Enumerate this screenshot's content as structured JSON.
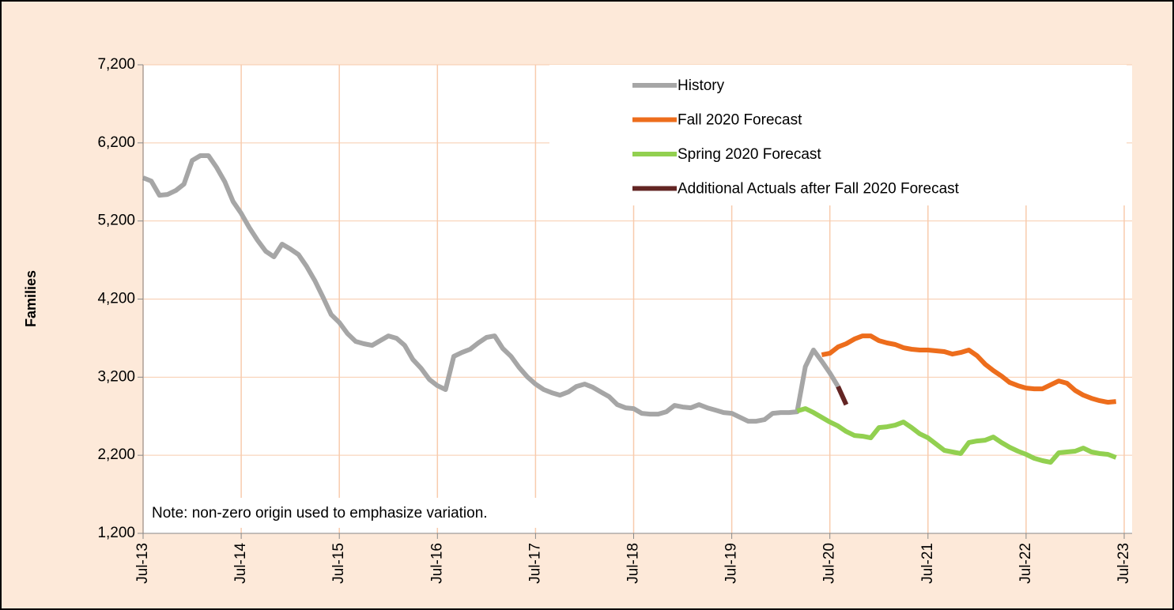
{
  "chart_data": {
    "type": "line",
    "y_label": "Families",
    "annotation": "Note: non-zero origin used to emphasize variation.",
    "categories": [
      "Jul-13",
      null,
      null,
      null,
      null,
      null,
      null,
      null,
      null,
      null,
      null,
      null,
      "Jul-14",
      null,
      null,
      null,
      null,
      null,
      null,
      null,
      null,
      null,
      null,
      null,
      "Jul-15",
      null,
      null,
      null,
      null,
      null,
      null,
      null,
      null,
      null,
      null,
      null,
      "Jul-16",
      null,
      null,
      null,
      null,
      null,
      null,
      null,
      null,
      null,
      null,
      null,
      "Jul-17",
      null,
      null,
      null,
      null,
      null,
      null,
      null,
      null,
      null,
      null,
      null,
      "Jul-18",
      null,
      null,
      null,
      null,
      null,
      null,
      null,
      null,
      null,
      null,
      null,
      "Jul-19",
      null,
      null,
      null,
      null,
      null,
      null,
      null,
      null,
      null,
      null,
      null,
      "Jul-20",
      null,
      null,
      null,
      null,
      null,
      null,
      null,
      null,
      null,
      null,
      null,
      "Jul-21",
      null,
      null,
      null,
      null,
      null,
      null,
      null,
      null,
      null,
      null,
      null,
      "Jul-22",
      null,
      null,
      null,
      null,
      null,
      null,
      null,
      null,
      null,
      null,
      null,
      "Jul-23"
    ],
    "series": [
      {
        "name": "History",
        "color": "#a6a6a6",
        "values": [
          5753,
          5712,
          5530,
          5540,
          5590,
          5672,
          5975,
          6036,
          6036,
          5884,
          5702,
          5450,
          5297,
          5115,
          4953,
          4812,
          4741,
          4903,
          4842,
          4771,
          4619,
          4437,
          4225,
          4002,
          3901,
          3759,
          3658,
          3628,
          3607,
          3668,
          3729,
          3698,
          3607,
          3425,
          3314,
          3172,
          3091,
          3041,
          3466,
          3516,
          3557,
          3638,
          3709,
          3729,
          3567,
          3466,
          3324,
          3203,
          3111,
          3041,
          3000,
          2970,
          3010,
          3081,
          3111,
          3071,
          3010,
          2950,
          2848,
          2808,
          2798,
          2737,
          2727,
          2727,
          2757,
          2838,
          2818,
          2808,
          2848,
          2808,
          2778,
          2747,
          2737,
          2686,
          2636,
          2636,
          2656,
          2737,
          2747,
          2747,
          2757,
          3334,
          3547,
          3405,
          3253,
          3081,
          null,
          null,
          null,
          null,
          null,
          null,
          null,
          null,
          null,
          null,
          null,
          null,
          null,
          null,
          null,
          null,
          null,
          null,
          null,
          null,
          null,
          null,
          null,
          null,
          null,
          null,
          null,
          null,
          null,
          null,
          null,
          null,
          null,
          null,
          null
        ]
      },
      {
        "name": "Fall 2020 Forecast",
        "color": "#ed6d1c",
        "values": [
          null,
          null,
          null,
          null,
          null,
          null,
          null,
          null,
          null,
          null,
          null,
          null,
          null,
          null,
          null,
          null,
          null,
          null,
          null,
          null,
          null,
          null,
          null,
          null,
          null,
          null,
          null,
          null,
          null,
          null,
          null,
          null,
          null,
          null,
          null,
          null,
          null,
          null,
          null,
          null,
          null,
          null,
          null,
          null,
          null,
          null,
          null,
          null,
          null,
          null,
          null,
          null,
          null,
          null,
          null,
          null,
          null,
          null,
          null,
          null,
          null,
          null,
          null,
          null,
          null,
          null,
          null,
          null,
          null,
          null,
          null,
          null,
          null,
          null,
          null,
          null,
          null,
          null,
          null,
          null,
          null,
          null,
          null,
          3486,
          3506,
          3587,
          3628,
          3688,
          3729,
          3729,
          3668,
          3638,
          3618,
          3577,
          3557,
          3547,
          3547,
          3537,
          3527,
          3496,
          3516,
          3547,
          3476,
          3365,
          3284,
          3213,
          3132,
          3091,
          3061,
          3051,
          3051,
          3101,
          3152,
          3122,
          3030,
          2970,
          2929,
          2899,
          2879,
          2889,
          null
        ]
      },
      {
        "name": "Spring 2020 Forecast",
        "color": "#92d050",
        "values": [
          null,
          null,
          null,
          null,
          null,
          null,
          null,
          null,
          null,
          null,
          null,
          null,
          null,
          null,
          null,
          null,
          null,
          null,
          null,
          null,
          null,
          null,
          null,
          null,
          null,
          null,
          null,
          null,
          null,
          null,
          null,
          null,
          null,
          null,
          null,
          null,
          null,
          null,
          null,
          null,
          null,
          null,
          null,
          null,
          null,
          null,
          null,
          null,
          null,
          null,
          null,
          null,
          null,
          null,
          null,
          null,
          null,
          null,
          null,
          null,
          null,
          null,
          null,
          null,
          null,
          null,
          null,
          null,
          null,
          null,
          null,
          null,
          null,
          null,
          null,
          null,
          null,
          null,
          null,
          null,
          2767,
          2798,
          2747,
          2686,
          2626,
          2575,
          2504,
          2454,
          2444,
          2423,
          2555,
          2565,
          2585,
          2626,
          2555,
          2474,
          2423,
          2343,
          2262,
          2242,
          2222,
          2363,
          2383,
          2393,
          2433,
          2363,
          2302,
          2252,
          2212,
          2161,
          2131,
          2110,
          2232,
          2242,
          2252,
          2292,
          2242,
          2222,
          2212,
          2171,
          null
        ]
      },
      {
        "name": "Additional Actuals after Fall 2020 Forecast",
        "color": "#632523",
        "values": [
          null,
          null,
          null,
          null,
          null,
          null,
          null,
          null,
          null,
          null,
          null,
          null,
          null,
          null,
          null,
          null,
          null,
          null,
          null,
          null,
          null,
          null,
          null,
          null,
          null,
          null,
          null,
          null,
          null,
          null,
          null,
          null,
          null,
          null,
          null,
          null,
          null,
          null,
          null,
          null,
          null,
          null,
          null,
          null,
          null,
          null,
          null,
          null,
          null,
          null,
          null,
          null,
          null,
          null,
          null,
          null,
          null,
          null,
          null,
          null,
          null,
          null,
          null,
          null,
          null,
          null,
          null,
          null,
          null,
          null,
          null,
          null,
          null,
          null,
          null,
          null,
          null,
          null,
          null,
          null,
          null,
          null,
          null,
          null,
          null,
          3081,
          2848,
          null,
          null,
          null,
          null,
          null,
          null,
          null,
          null,
          null,
          null,
          null,
          null,
          null,
          null,
          null,
          null,
          null,
          null,
          null,
          null,
          null,
          null,
          null,
          null,
          null,
          null,
          null,
          null,
          null,
          null,
          null,
          null,
          null,
          null
        ]
      }
    ],
    "ylim": [
      1200,
      7200
    ],
    "yticks": [
      {
        "value": 1200,
        "label": "1,200"
      },
      {
        "value": 2200,
        "label": "2,200"
      },
      {
        "value": 3200,
        "label": "3,200"
      },
      {
        "value": 4200,
        "label": "4,200"
      },
      {
        "value": 5200,
        "label": "5,200"
      },
      {
        "value": 6200,
        "label": "6,200"
      },
      {
        "value": 7200,
        "label": "7,200"
      }
    ],
    "grid": true,
    "legend": "upper-right"
  }
}
